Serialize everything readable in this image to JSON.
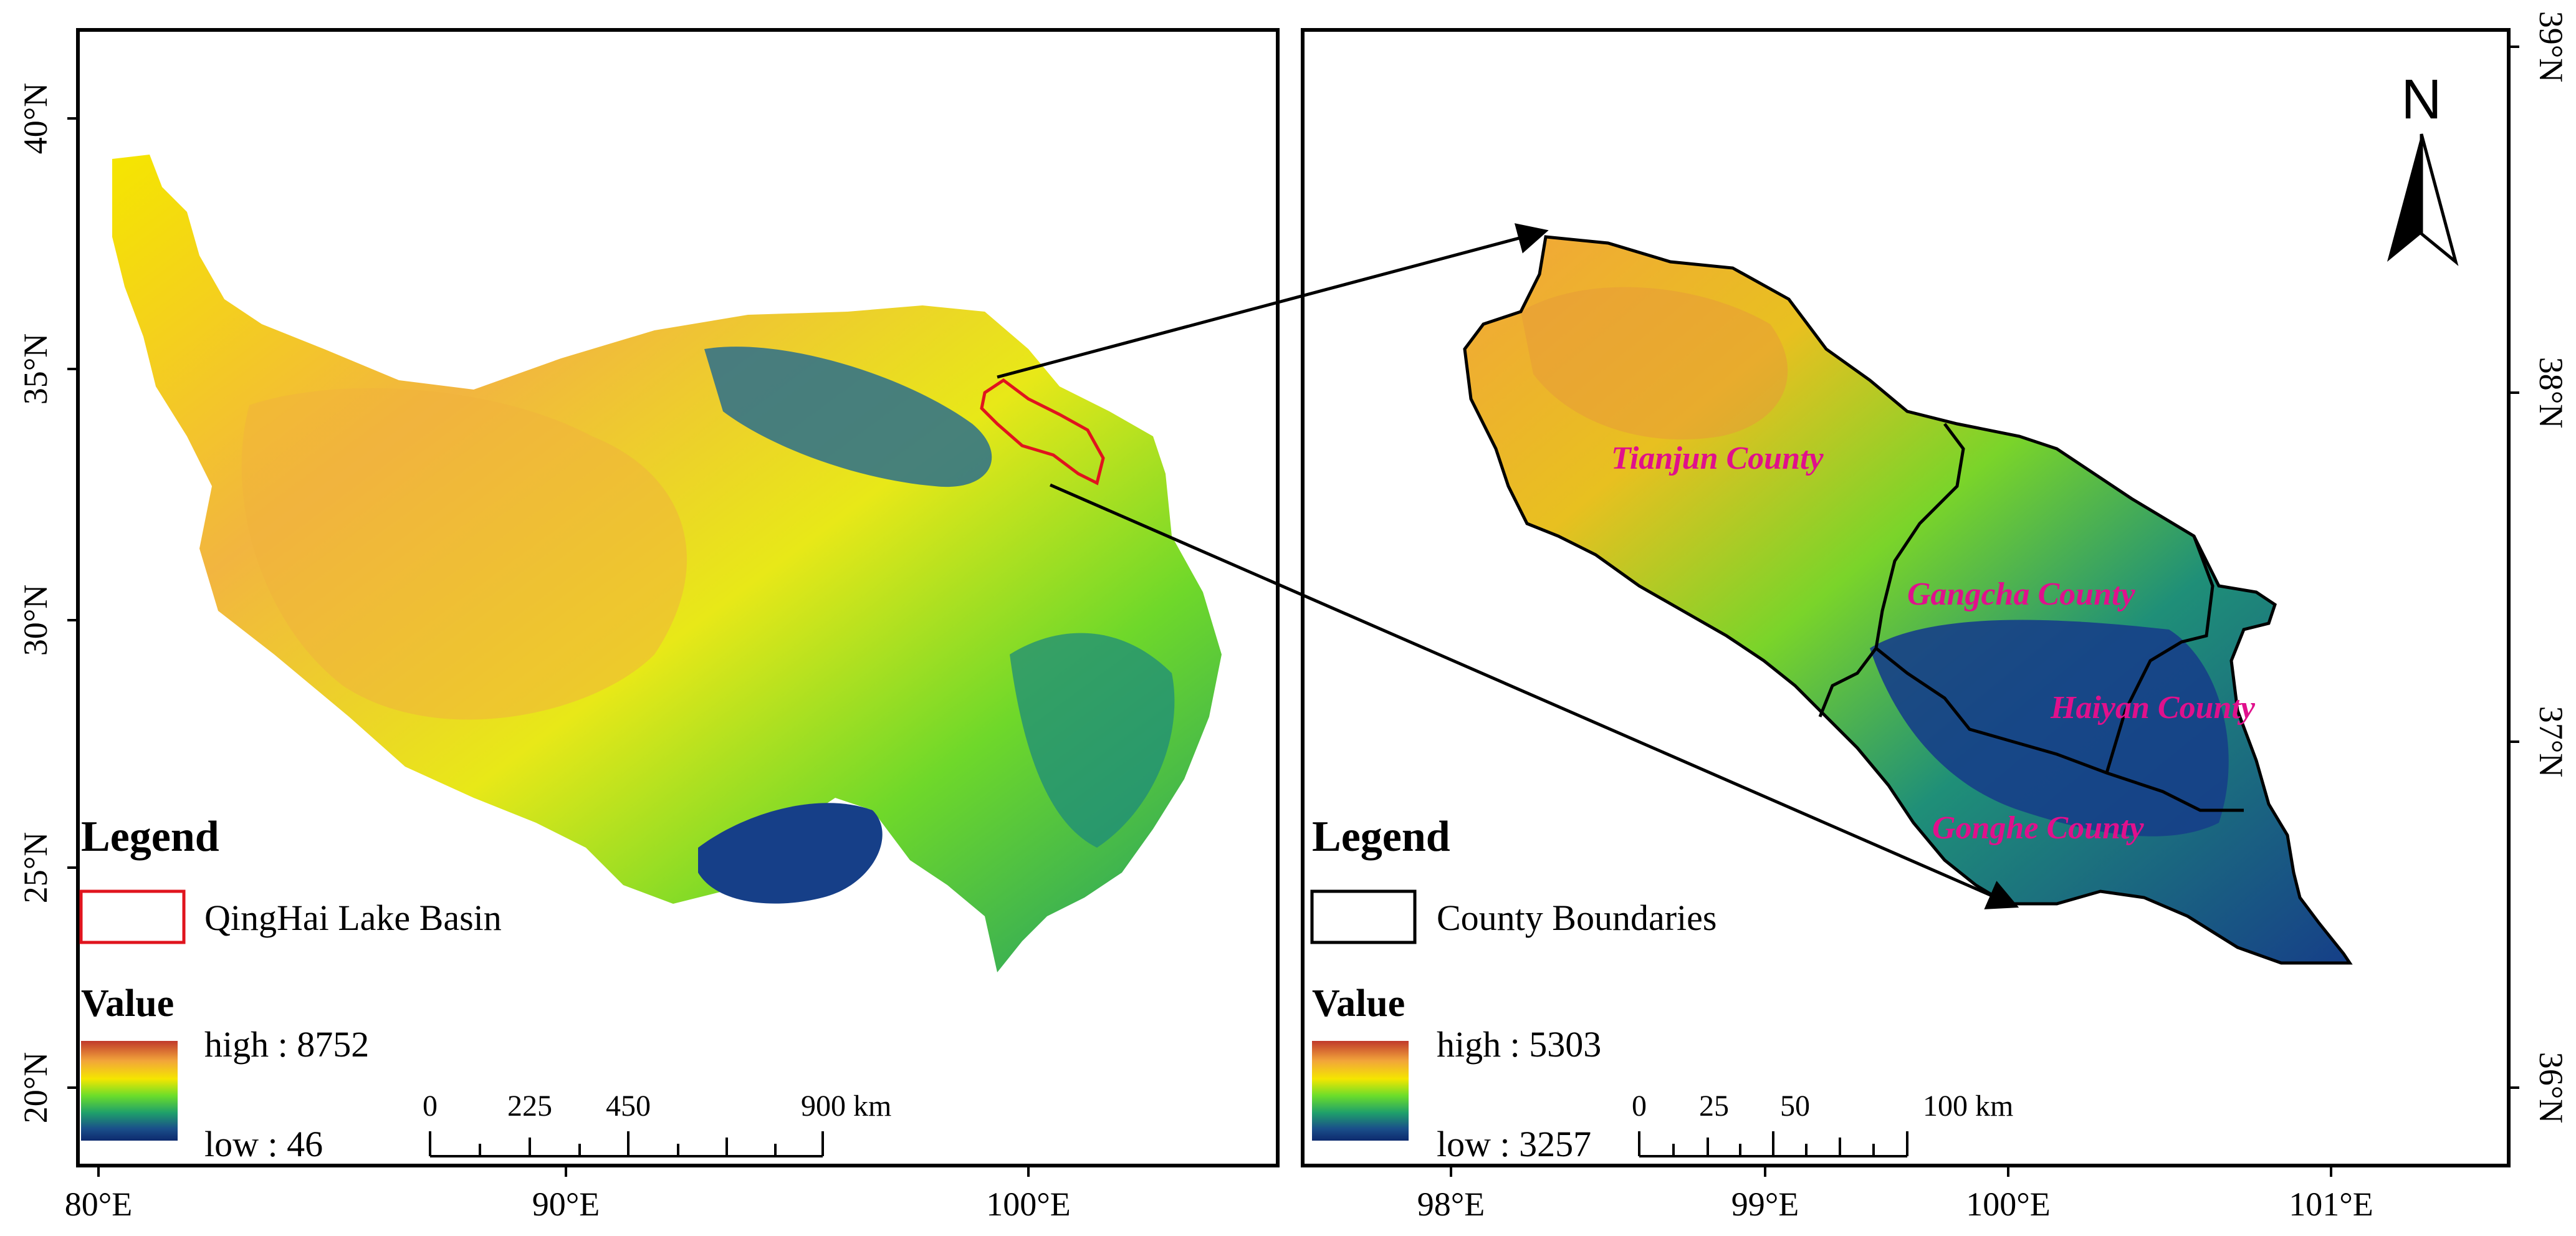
{
  "left_map": {
    "lon_ticks": [
      "80°E",
      "90°E",
      "100°E"
    ],
    "lat_ticks": [
      "20°N",
      "25°N",
      "30°N",
      "35°N",
      "40°N"
    ],
    "legend": {
      "title": "Legend",
      "basin_label": "QingHai Lake Basin",
      "value_title": "Value",
      "high_label": "high : 8752",
      "low_label": "low : 46"
    },
    "scale_bar": {
      "labels": [
        "0",
        "225",
        "450",
        "900 km"
      ]
    },
    "colors": {
      "basin_outline": "#e0141e"
    }
  },
  "right_map": {
    "lon_ticks": [
      "98°E",
      "99°E",
      "100°E",
      "101°E"
    ],
    "lat_ticks": [
      "36°N",
      "37°N",
      "38°N",
      "39°N"
    ],
    "north_arrow": "N",
    "counties": [
      "Tianjun County",
      "Gangcha County",
      "Haiyan County",
      "Gonghe County"
    ],
    "legend": {
      "title": "Legend",
      "boundary_label": "County Boundaries",
      "value_title": "Value",
      "high_label": "high : 5303",
      "low_label": "low : 3257"
    },
    "scale_bar": {
      "labels": [
        "0",
        "25",
        "50",
        "100 km"
      ]
    },
    "colors": {
      "county_label": "#e0108c",
      "boundary": "#000000"
    }
  },
  "elevation_ramp": [
    "#c0392b",
    "#f2a53a",
    "#f5e600",
    "#6bdd2a",
    "#1fa06a",
    "#1a4f8a",
    "#0d2a6e"
  ]
}
